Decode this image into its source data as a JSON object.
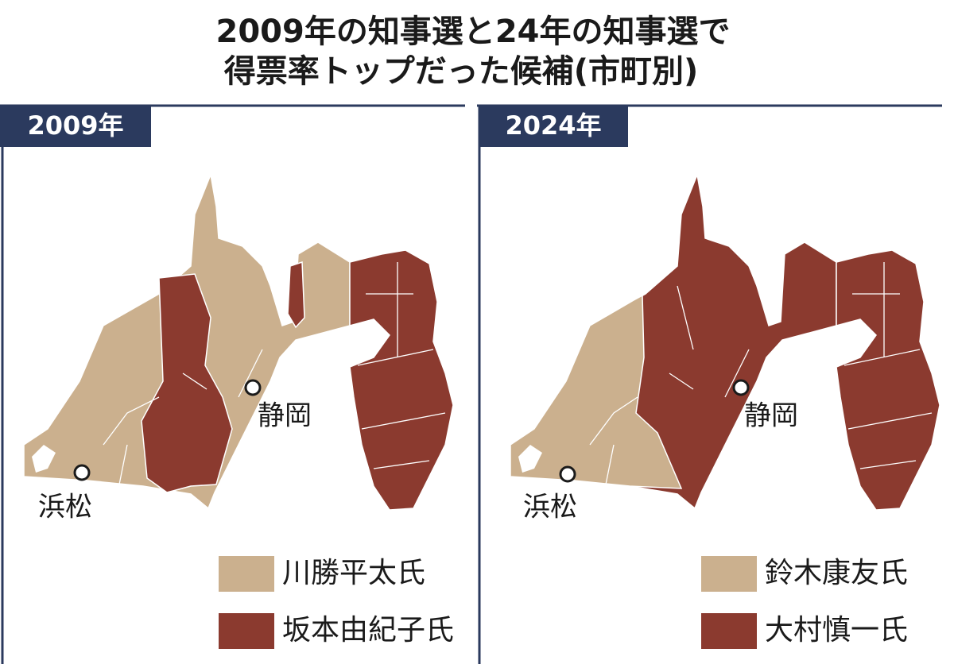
{
  "title": {
    "lines": [
      "2009年の知事選と24年の知事選で",
      "得票率トップだった候補(市町別)"
    ]
  },
  "panels": [
    {
      "label": "2009年",
      "cities": [
        {
          "label": "静岡"
        },
        {
          "label": "浜松"
        }
      ],
      "legend": [
        {
          "label": "川勝平太氏"
        },
        {
          "label": "坂本由紀子氏"
        }
      ]
    },
    {
      "label": "2024年",
      "cities": [
        {
          "label": "静岡"
        },
        {
          "label": "浜松"
        }
      ],
      "legend": [
        {
          "label": "鈴木康友氏"
        },
        {
          "label": "大村慎一氏"
        }
      ]
    }
  ]
}
